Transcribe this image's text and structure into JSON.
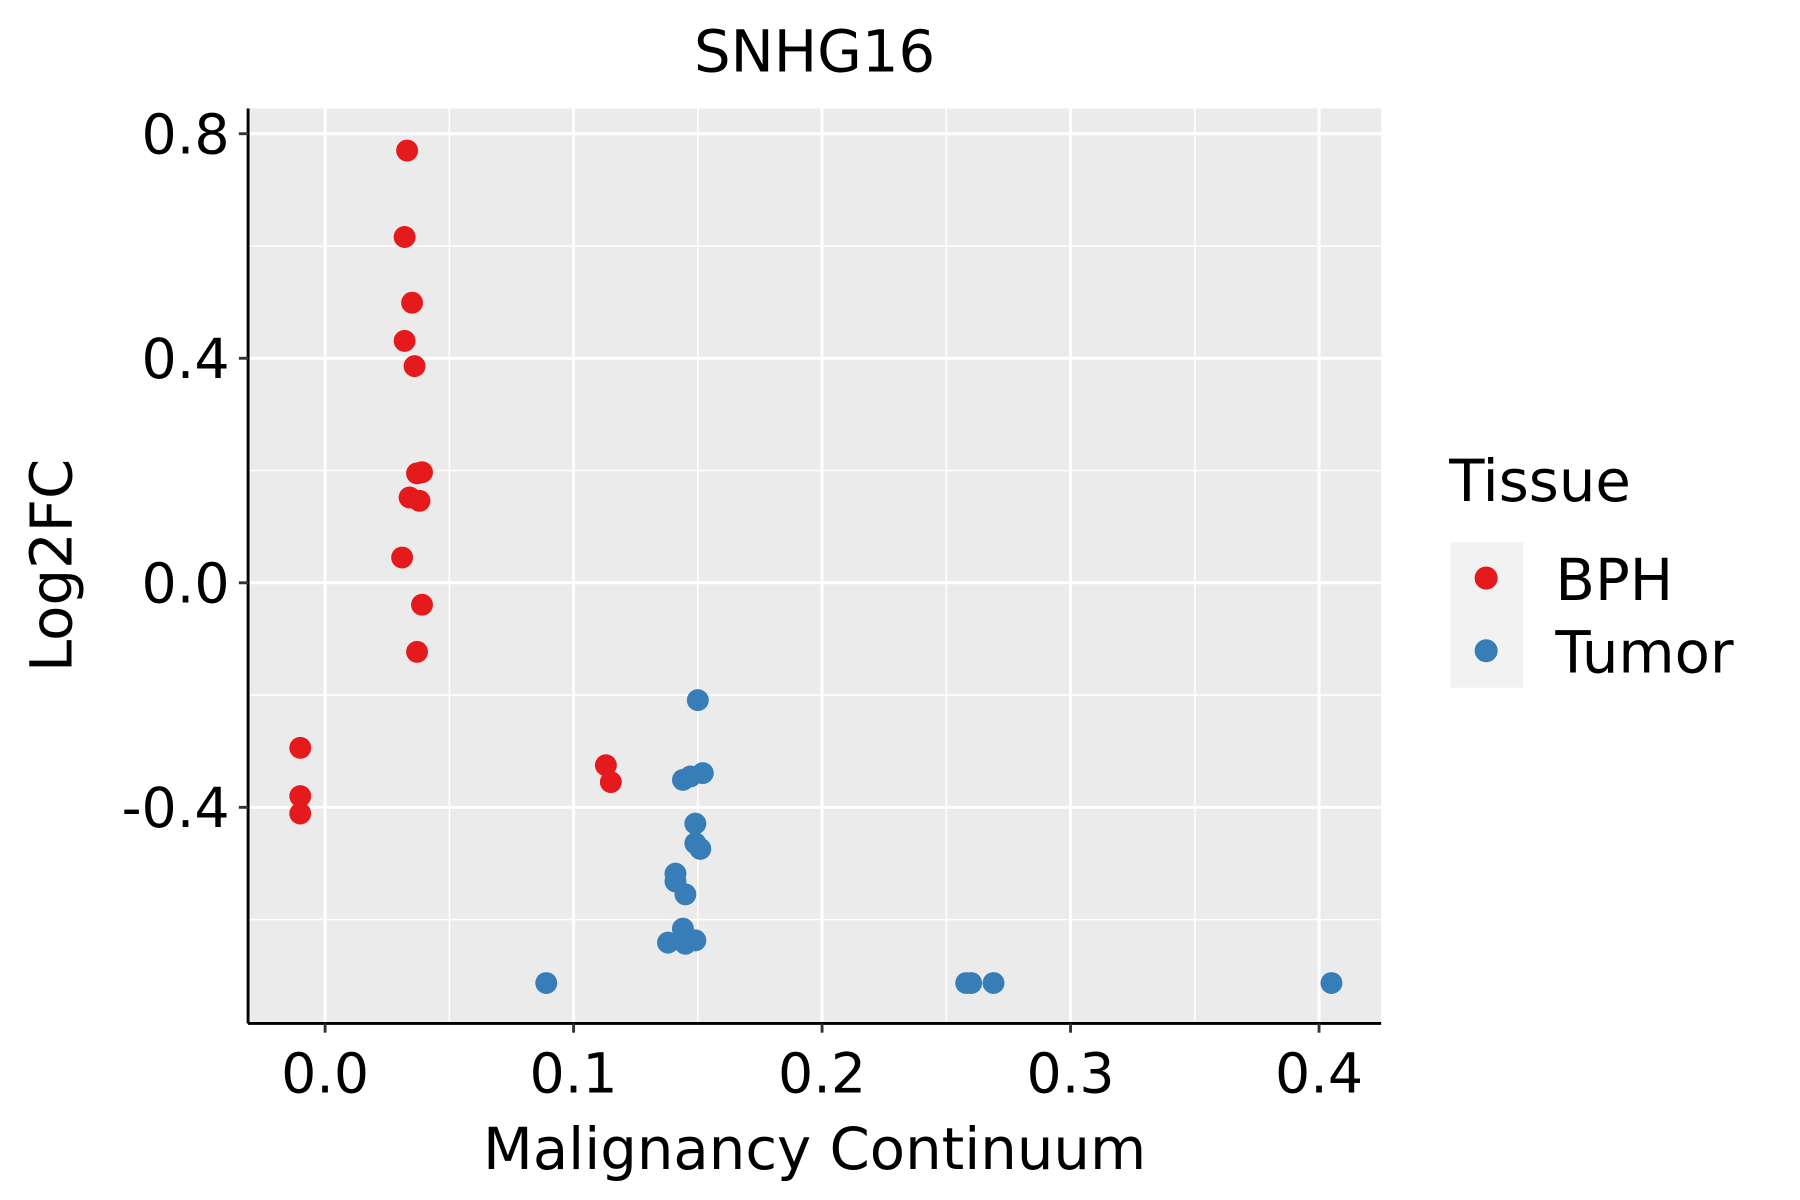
{
  "chart_data": {
    "type": "scatter",
    "title": "SNHG16",
    "xlabel": "Malignancy Continuum",
    "ylabel": "Log2FC",
    "xlim": [
      -0.031,
      0.425
    ],
    "ylim": [
      -0.785,
      0.845
    ],
    "xticks": [
      0.0,
      0.1,
      0.2,
      0.3,
      0.4
    ],
    "xtick_labels": [
      "0.0",
      "0.1",
      "0.2",
      "0.3",
      "0.4"
    ],
    "yticks": [
      0.8,
      0.4,
      0.0,
      -0.4
    ],
    "ytick_labels": [
      "0.8",
      "0.4",
      "0.0",
      "-0.4"
    ],
    "grid": true,
    "legend": {
      "title": "Tissue",
      "placement": "right"
    },
    "series": [
      {
        "name": "BPH",
        "color": "#E41A1C",
        "points": [
          [
            0.033,
            0.77
          ],
          [
            0.032,
            0.616
          ],
          [
            0.035,
            0.499
          ],
          [
            0.032,
            0.431
          ],
          [
            0.036,
            0.386
          ],
          [
            0.037,
            0.195
          ],
          [
            0.039,
            0.197
          ],
          [
            0.034,
            0.152
          ],
          [
            0.038,
            0.146
          ],
          [
            0.031,
            0.045
          ],
          [
            0.039,
            -0.039
          ],
          [
            0.037,
            -0.123
          ],
          [
            -0.01,
            -0.294
          ],
          [
            -0.01,
            -0.38
          ],
          [
            -0.01,
            -0.411
          ],
          [
            0.113,
            -0.325
          ],
          [
            0.115,
            -0.355
          ]
        ]
      },
      {
        "name": "Tumor",
        "color": "#377EB8",
        "points": [
          [
            0.15,
            -0.209
          ],
          [
            0.152,
            -0.339
          ],
          [
            0.147,
            -0.345
          ],
          [
            0.144,
            -0.351
          ],
          [
            0.149,
            -0.429
          ],
          [
            0.149,
            -0.464
          ],
          [
            0.151,
            -0.474
          ],
          [
            0.141,
            -0.518
          ],
          [
            0.141,
            -0.532
          ],
          [
            0.145,
            -0.555
          ],
          [
            0.144,
            -0.616
          ],
          [
            0.138,
            -0.641
          ],
          [
            0.145,
            -0.643
          ],
          [
            0.149,
            -0.637
          ],
          [
            0.089,
            -0.713
          ],
          [
            0.258,
            -0.713
          ],
          [
            0.26,
            -0.713
          ],
          [
            0.269,
            -0.713
          ],
          [
            0.405,
            -0.713
          ]
        ]
      }
    ]
  }
}
